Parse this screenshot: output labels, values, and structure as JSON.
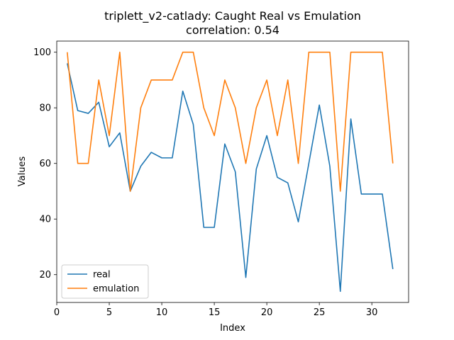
{
  "chart_data": {
    "type": "line",
    "title": "triplett_v2-catlady: Caught Real vs Emulation",
    "subtitle": "correlation: 0.54",
    "xlabel": "Index",
    "ylabel": "Values",
    "xlim": [
      0,
      33.5
    ],
    "ylim": [
      10,
      104
    ],
    "xticks": [
      0,
      5,
      10,
      15,
      20,
      25,
      30
    ],
    "yticks": [
      20,
      40,
      60,
      80,
      100
    ],
    "grid": false,
    "legend_position": "lower-left",
    "x": [
      1,
      2,
      3,
      4,
      5,
      6,
      7,
      8,
      9,
      10,
      11,
      12,
      13,
      14,
      15,
      16,
      17,
      18,
      19,
      20,
      21,
      22,
      23,
      24,
      25,
      26,
      27,
      28,
      29,
      30,
      31,
      32
    ],
    "series": [
      {
        "name": "real",
        "color": "#1f77b4",
        "values": [
          96,
          79,
          78,
          82,
          66,
          71,
          50,
          59,
          64,
          62,
          62,
          86,
          74,
          37,
          37,
          67,
          57,
          19,
          58,
          70,
          55,
          53,
          39,
          60,
          81,
          59,
          14,
          76,
          49,
          49,
          49,
          22
        ]
      },
      {
        "name": "emulation",
        "color": "#ff7f0e",
        "values": [
          100,
          60,
          60,
          90,
          70,
          100,
          50,
          80,
          90,
          90,
          90,
          100,
          100,
          80,
          70,
          90,
          80,
          60,
          80,
          90,
          70,
          90,
          60,
          100,
          100,
          100,
          50,
          100,
          100,
          100,
          100,
          60
        ]
      }
    ]
  }
}
